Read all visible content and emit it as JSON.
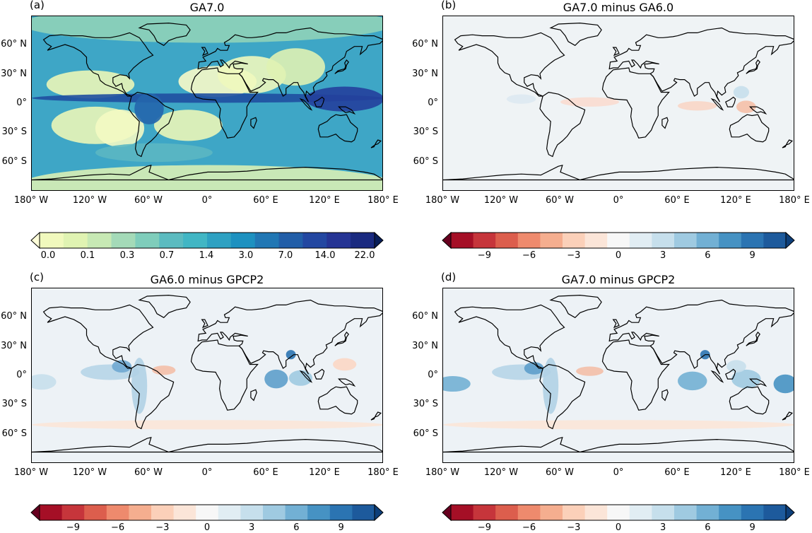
{
  "panels": [
    {
      "label": "(a)",
      "title": "GA7.0",
      "kind": "precip"
    },
    {
      "label": "(b)",
      "title": "GA7.0 minus GA6.0",
      "kind": "diff_small"
    },
    {
      "label": "(c)",
      "title": "GA6.0 minus GPCP2",
      "kind": "diff_big"
    },
    {
      "label": "(d)",
      "title": "GA7.0 minus GPCP2",
      "kind": "diff_big2"
    }
  ],
  "lat_ticks": [
    "60° N",
    "30° N",
    "0°",
    "30° S",
    "60° S"
  ],
  "lon_ticks": [
    "180° W",
    "120° W",
    "60° W",
    "0°",
    "60° E",
    "120° E",
    "180° E"
  ],
  "colorbars": [
    {
      "ticks": [
        "0.0",
        "0.1",
        "0.3",
        "0.7",
        "1.4",
        "3.0",
        "7.0",
        "14.0",
        "22.0"
      ],
      "colors": [
        "#ffffd9",
        "#f1f9bd",
        "#e0f3b2",
        "#c7e9b4",
        "#a4dab8",
        "#7fcdbb",
        "#5bbbc0",
        "#41b6c4",
        "#2ea1c2",
        "#1d91c0",
        "#2177b4",
        "#225ea8",
        "#2347a1",
        "#253494",
        "#1a2a80",
        "#081d58"
      ]
    },
    {
      "ticks": [
        "−9",
        "−6",
        "−3",
        "0",
        "3",
        "6",
        "9"
      ],
      "colors": [
        "#67001f",
        "#a50f26",
        "#c6353b",
        "#dc5e4d",
        "#ee8a6d",
        "#f5ae8f",
        "#fbd0b9",
        "#fbe5d8",
        "#f7f7f7",
        "#e1edf3",
        "#c6dfec",
        "#9fcae1",
        "#72b0d4",
        "#4692c3",
        "#2b74b2",
        "#1d5a9c",
        "#0d3f7a"
      ]
    },
    {
      "ticks": [
        "−9",
        "−6",
        "−3",
        "0",
        "3",
        "6",
        "9"
      ],
      "colors": [
        "#67001f",
        "#a50f26",
        "#c6353b",
        "#dc5e4d",
        "#ee8a6d",
        "#f5ae8f",
        "#fbd0b9",
        "#fbe5d8",
        "#f7f7f7",
        "#e1edf3",
        "#c6dfec",
        "#9fcae1",
        "#72b0d4",
        "#4692c3",
        "#2b74b2",
        "#1d5a9c",
        "#0d3f7a"
      ]
    },
    {
      "ticks": [
        "−9",
        "−6",
        "−3",
        "0",
        "3",
        "6",
        "9"
      ],
      "colors": [
        "#67001f",
        "#a50f26",
        "#c6353b",
        "#dc5e4d",
        "#ee8a6d",
        "#f5ae8f",
        "#fbd0b9",
        "#fbe5d8",
        "#f7f7f7",
        "#e1edf3",
        "#c6dfec",
        "#9fcae1",
        "#72b0d4",
        "#4692c3",
        "#2b74b2",
        "#1d5a9c",
        "#0d3f7a"
      ]
    }
  ]
}
